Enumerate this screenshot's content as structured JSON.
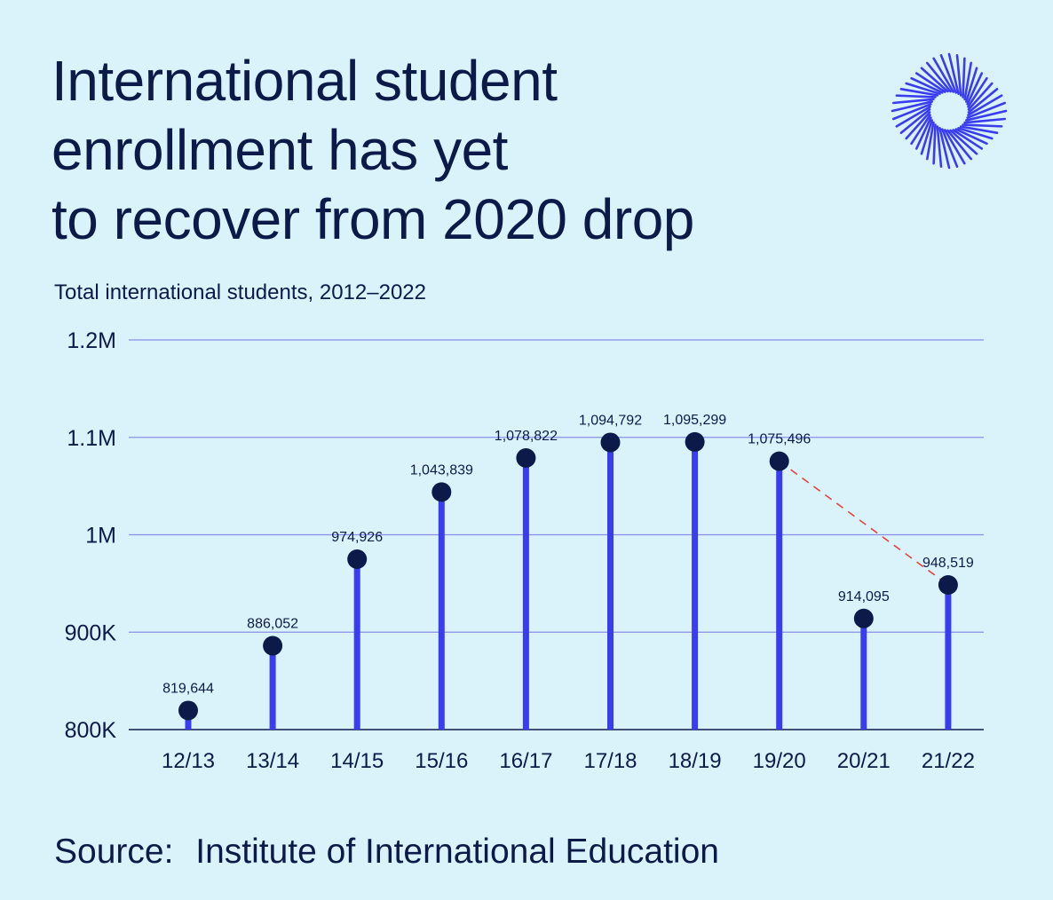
{
  "header": {
    "title_lines": [
      "International student",
      "enrollment has yet",
      "to recover from 2020 drop"
    ],
    "subtitle": "Total international students, 2012–2022",
    "logo_icon": "radial-burst-logo-icon"
  },
  "footer": {
    "source_label": "Source:",
    "source_value": "Institute of International Education"
  },
  "colors": {
    "background": "#daf3fb",
    "text": "#0c1a4a",
    "stem": "#3a3cf0",
    "marker": "#0c1a4a",
    "gridline": "#8a8fe8",
    "trend_line": "#e0463e",
    "logo": "#3a3cf0"
  },
  "chart_data": {
    "type": "lollipop",
    "title": "International student enrollment has yet to recover from 2020 drop",
    "subtitle": "Total international students, 2012–2022",
    "categories": [
      "12/13",
      "13/14",
      "14/15",
      "15/16",
      "16/17",
      "17/18",
      "18/19",
      "19/20",
      "20/21",
      "21/22"
    ],
    "values": [
      819644,
      886052,
      974926,
      1043839,
      1078822,
      1094792,
      1095299,
      1075496,
      914095,
      948519
    ],
    "value_labels": [
      "819,644",
      "886,052",
      "974,926",
      "1,043,839",
      "1,078,822",
      "1,094,792",
      "1,095,299",
      "1,075,496",
      "914,095",
      "948,519"
    ],
    "ylim": [
      800000,
      1200000
    ],
    "yticks": [
      800000,
      900000,
      1000000,
      1100000,
      1200000
    ],
    "ytick_labels": [
      "800K",
      "900K",
      "1M",
      "1.1M",
      "1.2M"
    ],
    "grid": true,
    "annotations": [
      {
        "type": "dashed-line",
        "from_category": "19/20",
        "to_category": "21/22"
      }
    ],
    "source": "Institute of International Education"
  }
}
